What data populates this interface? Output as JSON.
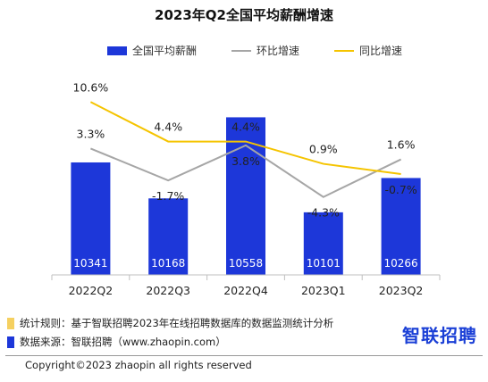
{
  "header": {
    "title": "2023年Q2全国平均薪酬增速"
  },
  "legend": {
    "bar": "全国平均薪酬",
    "mom": "环比增速",
    "yoy": "同比增速"
  },
  "colors": {
    "bar": "#1d37d9",
    "mom": "#a6a6a6",
    "yoy": "#f5c400",
    "axis": "#bfbfbf"
  },
  "chart_data": {
    "type": "bar",
    "categories": [
      "2022Q2",
      "2022Q3",
      "2022Q4",
      "2023Q1",
      "2023Q2"
    ],
    "values": [
      10341,
      10168,
      10558,
      10101,
      10266
    ],
    "series": [
      {
        "name": "全国平均薪酬",
        "type": "bar",
        "values": [
          10341,
          10168,
          10558,
          10101,
          10266
        ]
      },
      {
        "name": "环比增速",
        "type": "line",
        "values": [
          3.3,
          -1.7,
          3.8,
          -4.3,
          1.6
        ],
        "labels": [
          "3.3%",
          "-1.7%",
          "3.8%",
          "-4.3%",
          "1.6%"
        ]
      },
      {
        "name": "同比增速",
        "type": "line",
        "values": [
          10.6,
          4.4,
          4.4,
          0.9,
          -0.7
        ],
        "labels": [
          "10.6%",
          "4.4%",
          "4.4%",
          "0.9%",
          "-0.7%"
        ]
      }
    ],
    "bar_axis_range": [
      9800,
      10650
    ],
    "rate_axis_range": [
      -14,
      14
    ],
    "legend_position": "top"
  },
  "footer": {
    "rule": "统计规则：基于智联招聘2023年在线招聘数据库的数据监测统计分析",
    "source": "数据来源：智联招聘（www.zhaopin.com）",
    "rule_color": "#f5d060",
    "source_color": "#1d37d9",
    "brand": "智联招聘",
    "copyright": "Copyright©2023 zhaopin all rights reserved"
  }
}
